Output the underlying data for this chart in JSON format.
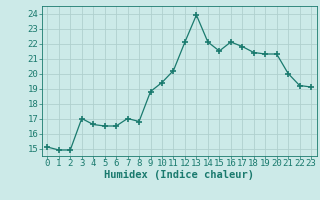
{
  "x": [
    0,
    1,
    2,
    3,
    4,
    5,
    6,
    7,
    8,
    9,
    10,
    11,
    12,
    13,
    14,
    15,
    16,
    17,
    18,
    19,
    20,
    21,
    22,
    23
  ],
  "y": [
    15.1,
    14.9,
    14.9,
    17.0,
    16.6,
    16.5,
    16.5,
    17.0,
    16.8,
    18.8,
    19.4,
    20.2,
    22.1,
    23.9,
    22.1,
    21.5,
    22.1,
    21.8,
    21.4,
    21.3,
    21.3,
    20.0,
    19.2,
    19.1
  ],
  "line_color": "#1a7a6e",
  "marker": "+",
  "marker_size": 4,
  "marker_lw": 1.2,
  "bg_color": "#cceae8",
  "grid_color": "#b0d0ce",
  "xlabel": "Humidex (Indice chaleur)",
  "ylabel_ticks": [
    15,
    16,
    17,
    18,
    19,
    20,
    21,
    22,
    23,
    24
  ],
  "xlim": [
    -0.5,
    23.5
  ],
  "ylim": [
    14.5,
    24.5
  ],
  "xlabel_fontsize": 7.5,
  "tick_fontsize": 6.5
}
